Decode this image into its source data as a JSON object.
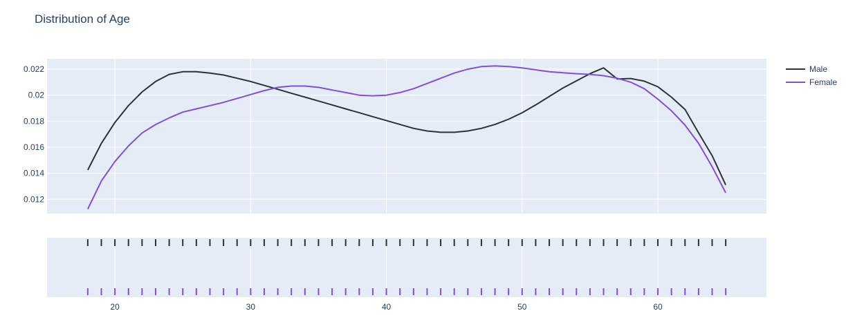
{
  "chart_data": {
    "type": "line",
    "title": "Distribution of Age",
    "xlabel": "",
    "ylabel": "",
    "xlim": [
      15,
      68
    ],
    "ylim": [
      0.0109,
      0.0228
    ],
    "x_ticks": [
      20,
      30,
      40,
      50,
      60
    ],
    "y_ticks": [
      0.012,
      0.014,
      0.016,
      0.018,
      0.02,
      0.022
    ],
    "y_tick_labels": [
      "0.012",
      "0.014",
      "0.016",
      "0.018",
      "0.02",
      "0.022"
    ],
    "legend_position": "top-right",
    "grid": true,
    "x": [
      18,
      19,
      20,
      21,
      22,
      23,
      24,
      25,
      26,
      27,
      28,
      29,
      30,
      31,
      32,
      33,
      34,
      35,
      36,
      37,
      38,
      39,
      40,
      41,
      42,
      43,
      44,
      45,
      46,
      47,
      48,
      49,
      50,
      51,
      52,
      53,
      54,
      55,
      56,
      57,
      58,
      59,
      60,
      61,
      62,
      63,
      64,
      65
    ],
    "series": [
      {
        "name": "Male",
        "color": "#2a3138",
        "values": [
          0.01425,
          0.0163,
          0.0179,
          0.0192,
          0.02025,
          0.02105,
          0.0216,
          0.0218,
          0.0218,
          0.0217,
          0.02155,
          0.0213,
          0.02105,
          0.02075,
          0.02045,
          0.02015,
          0.01985,
          0.01955,
          0.01925,
          0.01895,
          0.01865,
          0.01835,
          0.01805,
          0.01775,
          0.01745,
          0.01725,
          0.01715,
          0.01715,
          0.01725,
          0.01745,
          0.01775,
          0.01815,
          0.01865,
          0.01925,
          0.0199,
          0.02055,
          0.0211,
          0.02165,
          0.0221,
          0.02125,
          0.02128,
          0.02108,
          0.02065,
          0.01985,
          0.0189,
          0.0171,
          0.01535,
          0.0131
        ],
        "rug": [
          18,
          19,
          20,
          21,
          22,
          23,
          24,
          25,
          26,
          27,
          28,
          29,
          30,
          31,
          32,
          33,
          34,
          35,
          36,
          37,
          38,
          39,
          40,
          41,
          42,
          43,
          44,
          45,
          46,
          47,
          48,
          49,
          50,
          51,
          52,
          53,
          54,
          55,
          56,
          57,
          58,
          59,
          60,
          61,
          62,
          63,
          64,
          65
        ]
      },
      {
        "name": "Female",
        "color": "#7d4fe0",
        "values": [
          0.01125,
          0.0134,
          0.0149,
          0.0161,
          0.0171,
          0.01775,
          0.01825,
          0.0187,
          0.01895,
          0.0192,
          0.01945,
          0.01975,
          0.02005,
          0.02035,
          0.0206,
          0.0207,
          0.0207,
          0.0206,
          0.0204,
          0.0202,
          0.02,
          0.01995,
          0.02,
          0.0202,
          0.0205,
          0.0209,
          0.0213,
          0.0217,
          0.022,
          0.0222,
          0.02225,
          0.0222,
          0.0221,
          0.02195,
          0.0218,
          0.02172,
          0.02165,
          0.0216,
          0.0215,
          0.0213,
          0.021,
          0.0205,
          0.0197,
          0.0188,
          0.0177,
          0.0163,
          0.0145,
          0.0125
        ],
        "rug": [
          18,
          19,
          20,
          21,
          22,
          23,
          24,
          25,
          26,
          27,
          28,
          29,
          30,
          31,
          32,
          33,
          34,
          35,
          36,
          37,
          38,
          39,
          40,
          41,
          42,
          43,
          44,
          45,
          46,
          47,
          48,
          49,
          50,
          51,
          52,
          53,
          54,
          55,
          56,
          57,
          58,
          59,
          60,
          61,
          62,
          63,
          64,
          65
        ]
      }
    ]
  }
}
